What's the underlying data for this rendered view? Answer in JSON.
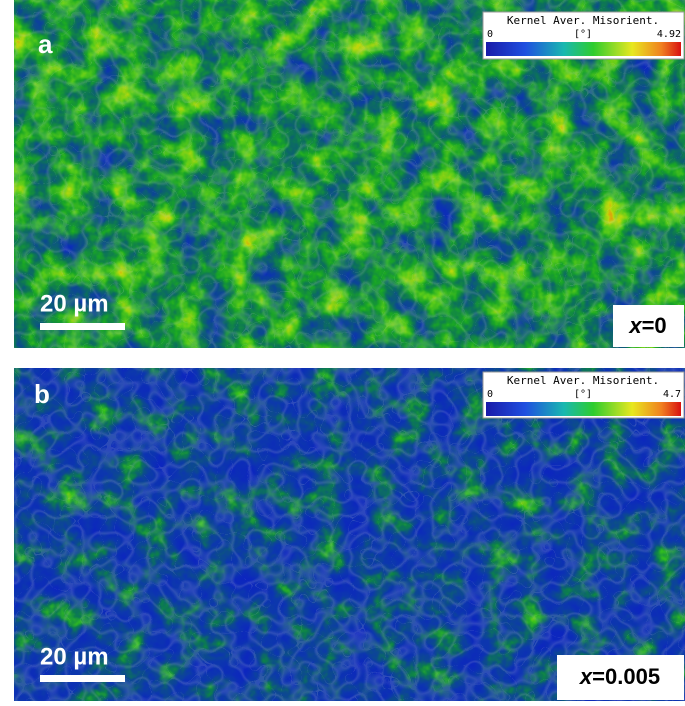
{
  "panels": [
    {
      "label": "a",
      "colorbar": {
        "title": "Kernel Aver. Misorient.",
        "min": 0,
        "unit": "[°]",
        "max": 4.92
      },
      "scale_bar": "20 µm",
      "composition": {
        "variable": "x",
        "value": "=0"
      }
    },
    {
      "label": "b",
      "colorbar": {
        "title": "Kernel Aver. Misorient.",
        "min": 0,
        "unit": "[°]",
        "max": 4.7
      },
      "scale_bar": "20 µm",
      "composition": {
        "variable": "x",
        "value": "=0.005"
      }
    }
  ]
}
